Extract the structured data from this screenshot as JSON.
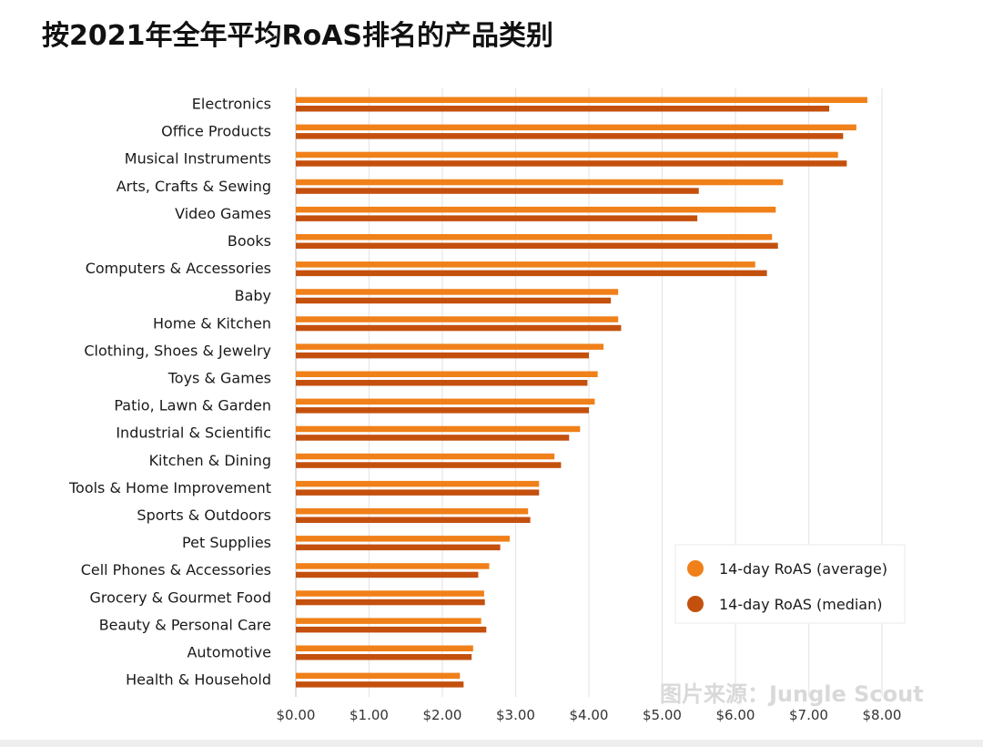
{
  "title": "按2021年全年平均RoAS排名的产品类别",
  "watermark": "图片来源：Jungle Scout",
  "colors": {
    "average": "#F08019",
    "median": "#C4500E",
    "grid": "#e6e6e6"
  },
  "chart_data": {
    "type": "bar",
    "orientation": "horizontal",
    "title": "按2021年全年平均RoAS排名的产品类别",
    "categories": [
      "Electronics",
      "Office Products",
      "Musical Instruments",
      "Arts, Crafts & Sewing",
      "Video Games",
      "Books",
      "Computers & Accessories",
      "Baby",
      "Home & Kitchen",
      "Clothing, Shoes & Jewelry",
      "Toys & Games",
      "Patio, Lawn & Garden",
      "Industrial & Scientific",
      "Kitchen & Dining",
      "Tools & Home Improvement",
      "Sports & Outdoors",
      "Pet Supplies",
      "Cell Phones & Accessories",
      "Grocery & Gourmet Food",
      "Beauty & Personal Care",
      "Automotive",
      "Health & Household"
    ],
    "series": [
      {
        "name": "14-day RoAS (average)",
        "values": [
          7.8,
          7.65,
          7.4,
          6.65,
          6.55,
          6.5,
          6.27,
          4.4,
          4.4,
          4.2,
          4.12,
          4.08,
          3.88,
          3.53,
          3.32,
          3.17,
          2.92,
          2.64,
          2.57,
          2.53,
          2.42,
          2.24
        ]
      },
      {
        "name": "14-day RoAS (median)",
        "values": [
          7.28,
          7.47,
          7.52,
          5.5,
          5.48,
          6.58,
          6.43,
          4.3,
          4.44,
          4.0,
          3.98,
          4.0,
          3.73,
          3.62,
          3.32,
          3.2,
          2.79,
          2.49,
          2.58,
          2.6,
          2.4,
          2.29
        ]
      }
    ],
    "x_ticks": [
      "$0.00",
      "$1.00",
      "$2.00",
      "$3.00",
      "$4.00",
      "$5.00",
      "$6.00",
      "$7.00",
      "$8.00"
    ],
    "xlim": [
      0,
      8
    ],
    "grid": true,
    "legend_position": "bottom-right"
  }
}
